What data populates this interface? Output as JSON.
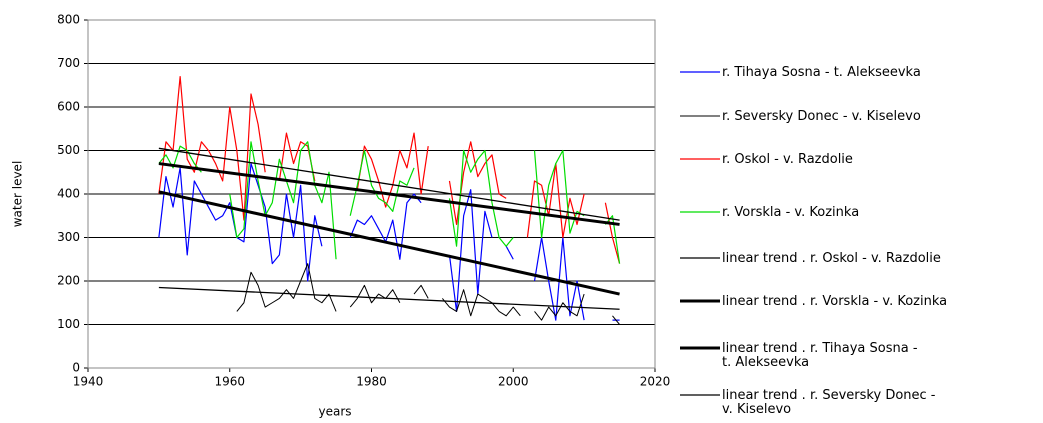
{
  "chart_data": {
    "type": "line",
    "x_label": "years",
    "y_label": "water level",
    "xlim": [
      1940,
      2020
    ],
    "xticks": [
      1940,
      1960,
      1980,
      2000,
      2020
    ],
    "ylim": [
      0,
      800
    ],
    "yticks": [
      0,
      100,
      200,
      300,
      400,
      500,
      600,
      700,
      800
    ],
    "grid": true,
    "legend": "right",
    "x": [
      1950,
      1951,
      1952,
      1953,
      1954,
      1955,
      1956,
      1957,
      1958,
      1959,
      1960,
      1961,
      1962,
      1963,
      1964,
      1965,
      1966,
      1967,
      1968,
      1969,
      1970,
      1971,
      1972,
      1973,
      1974,
      1975,
      1976,
      1977,
      1978,
      1979,
      1980,
      1981,
      1982,
      1983,
      1984,
      1985,
      1986,
      1987,
      1988,
      1989,
      1990,
      1991,
      1992,
      1993,
      1994,
      1995,
      1996,
      1997,
      1998,
      1999,
      2000,
      2001,
      2002,
      2003,
      2004,
      2005,
      2006,
      2007,
      2008,
      2009,
      2010,
      2011,
      2012,
      2013,
      2014,
      2015
    ],
    "series": [
      {
        "name": "r. Tihaya Sosna - t. Alekseevka",
        "color": "#0000ff",
        "width": 1.2,
        "values": [
          300,
          440,
          370,
          460,
          260,
          430,
          400,
          370,
          340,
          350,
          380,
          300,
          290,
          470,
          420,
          370,
          240,
          260,
          400,
          300,
          420,
          200,
          350,
          280,
          null,
          150,
          null,
          300,
          340,
          330,
          350,
          320,
          290,
          340,
          250,
          380,
          400,
          380,
          null,
          300,
          null,
          260,
          130,
          350,
          410,
          170,
          360,
          300,
          null,
          280,
          250,
          null,
          null,
          200,
          300,
          200,
          110,
          300,
          120,
          200,
          110,
          null,
          null,
          null,
          110,
          110
        ]
      },
      {
        "name": "r. Seversky Donec - v. Kiselevo",
        "color": "#000000",
        "width": 1,
        "values": [
          null,
          null,
          null,
          null,
          null,
          null,
          null,
          null,
          null,
          null,
          null,
          130,
          150,
          220,
          190,
          140,
          150,
          160,
          180,
          160,
          200,
          240,
          160,
          150,
          170,
          130,
          null,
          140,
          160,
          190,
          150,
          170,
          160,
          180,
          150,
          null,
          170,
          190,
          160,
          null,
          160,
          140,
          130,
          180,
          120,
          170,
          160,
          150,
          130,
          120,
          140,
          120,
          null,
          130,
          110,
          140,
          120,
          150,
          130,
          120,
          170,
          null,
          null,
          null,
          120,
          100
        ]
      },
      {
        "name": "r. Oskol - v. Razdolie",
        "color": "#ff0000",
        "width": 1.2,
        "values": [
          400,
          520,
          500,
          670,
          480,
          450,
          520,
          500,
          470,
          430,
          600,
          500,
          340,
          630,
          560,
          450,
          null,
          430,
          540,
          470,
          520,
          510,
          430,
          null,
          null,
          null,
          null,
          null,
          410,
          510,
          480,
          430,
          370,
          420,
          500,
          460,
          540,
          400,
          510,
          null,
          null,
          430,
          330,
          450,
          520,
          440,
          470,
          490,
          400,
          390,
          null,
          null,
          300,
          430,
          420,
          350,
          470,
          300,
          390,
          330,
          400,
          null,
          null,
          380,
          300,
          240
        ]
      },
      {
        "name": "r. Vorskla - v. Kozinka",
        "color": "#00dd00",
        "width": 1.2,
        "values": [
          470,
          490,
          460,
          510,
          500,
          470,
          450,
          null,
          null,
          null,
          400,
          300,
          320,
          520,
          430,
          350,
          380,
          480,
          430,
          380,
          500,
          520,
          420,
          380,
          450,
          250,
          null,
          350,
          420,
          500,
          420,
          390,
          380,
          360,
          430,
          420,
          460,
          null,
          null,
          null,
          null,
          390,
          280,
          500,
          450,
          480,
          500,
          380,
          300,
          280,
          300,
          null,
          null,
          500,
          300,
          420,
          470,
          500,
          310,
          360,
          350,
          null,
          null,
          330,
          350,
          240
        ]
      },
      {
        "name": "linear trend .  r. Oskol - v. Razdolie",
        "color": "#000000",
        "width": 1.3,
        "x": [
          1950,
          2015
        ],
        "values": [
          505,
          340
        ]
      },
      {
        "name": "linear trend .  r. Vorskla - v. Kozinka",
        "color": "#000000",
        "width": 3,
        "x": [
          1950,
          2015
        ],
        "values": [
          470,
          330
        ]
      },
      {
        "name": "linear trend . r. Tihaya Sosna -\nt. Alekseevka",
        "color": "#000000",
        "width": 3,
        "x": [
          1950,
          2015
        ],
        "values": [
          405,
          170
        ]
      },
      {
        "name": "linear trend .  r. Seversky Donec -\nv. Kiselevo",
        "color": "#000000",
        "width": 1.3,
        "x": [
          1950,
          2015
        ],
        "values": [
          185,
          135
        ]
      }
    ]
  }
}
